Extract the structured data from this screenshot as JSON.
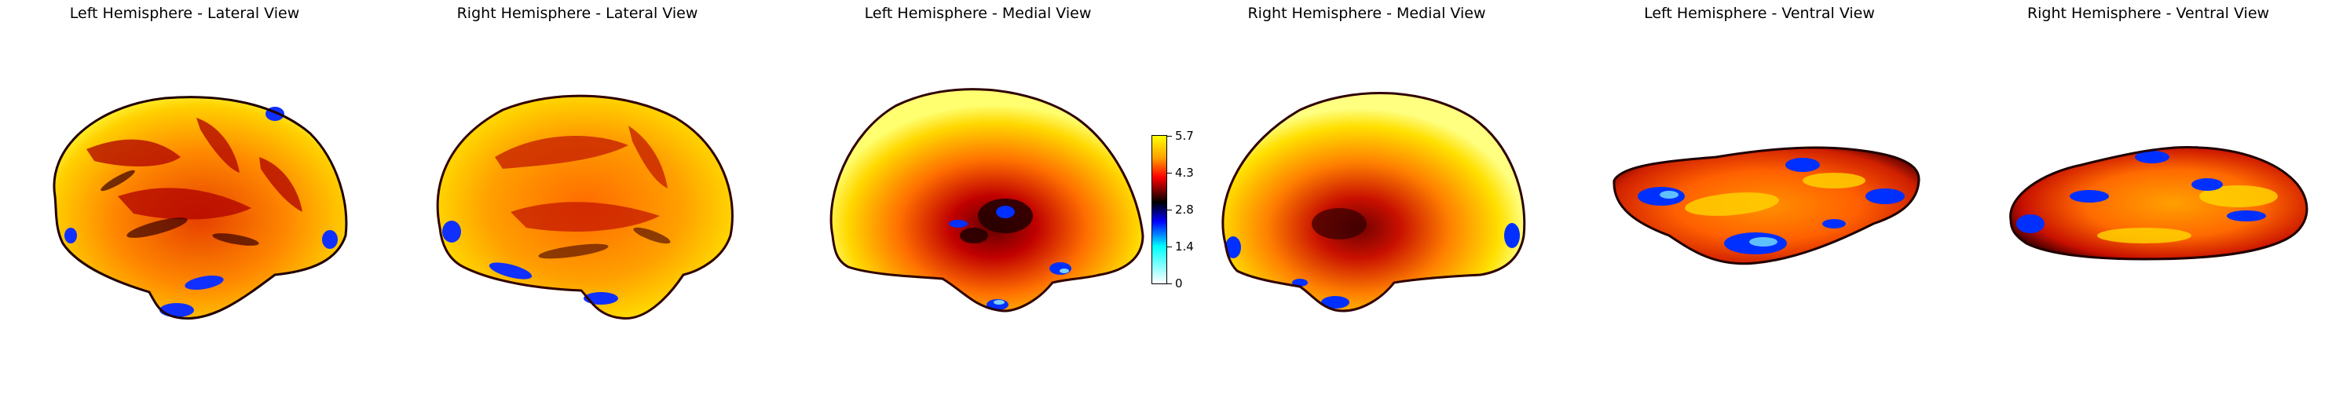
{
  "figure": {
    "panels": [
      {
        "title": "Left Hemisphere - Lateral View"
      },
      {
        "title": "Right Hemisphere - Lateral View"
      },
      {
        "title": "Left Hemisphere - Medial View"
      },
      {
        "title": "Right Hemisphere - Medial View"
      },
      {
        "title": "Left Hemisphere - Ventral View"
      },
      {
        "title": "Right Hemisphere - Ventral View"
      }
    ],
    "colorbar": {
      "min": 0,
      "max": 5.7,
      "ticks": [
        "0",
        "1.4",
        "2.8",
        "4.3",
        "5.7"
      ],
      "colormap": [
        "#ffffff",
        "#00ffff",
        "#0000ff",
        "#000000",
        "#ff0000",
        "#ffff00"
      ]
    },
    "colors": {
      "surface_base": "#ff8c00",
      "surface_high": "#ffff00",
      "surface_mid": "#ff0000",
      "surface_low": "#000000",
      "surface_lowest": "#0000ff"
    }
  }
}
